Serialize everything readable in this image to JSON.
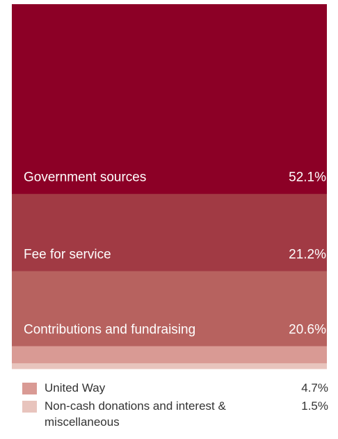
{
  "chart_data": {
    "type": "bar",
    "orientation": "stacked-vertical",
    "series": [
      {
        "name": "Government sources",
        "value": 52.1,
        "value_label": "52.1%",
        "color": "#8c0026"
      },
      {
        "name": "Fee for service",
        "value": 21.2,
        "value_label": "21.2%",
        "color": "#a13a44"
      },
      {
        "name": "Contributions and fundraising",
        "value": 20.6,
        "value_label": "20.6%",
        "color": "#b7625f"
      },
      {
        "name": "United Way",
        "value": 4.7,
        "value_label": "4.7%",
        "color": "#d99a94"
      },
      {
        "name": "Non-cash donations and interest & miscellaneous",
        "value": 1.5,
        "value_label": "1.5%",
        "color": "#e8c4bd"
      }
    ]
  }
}
